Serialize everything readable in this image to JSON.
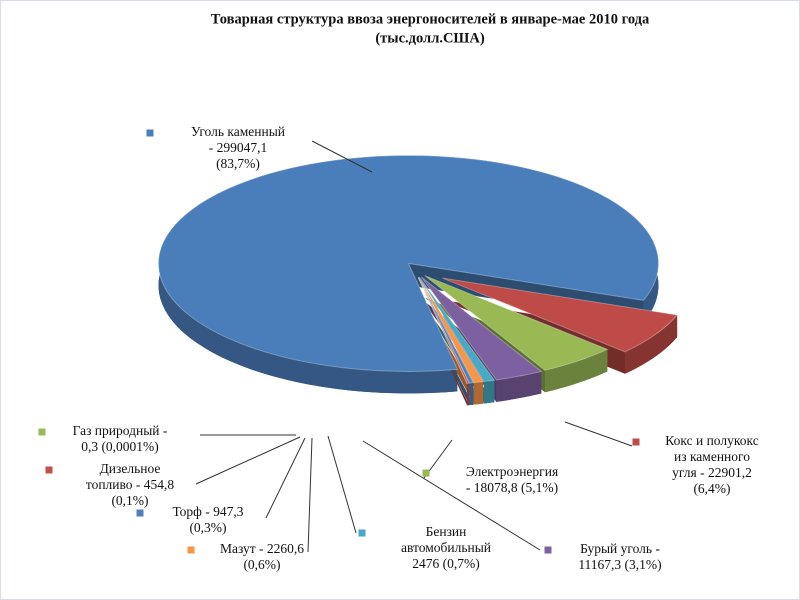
{
  "chart_data": {
    "type": "pie",
    "title": "Товарная структура ввоза энергоносителей в январе-мае 2010 года",
    "subtitle": "(тыс.долл.США)",
    "categories": [
      null,
      null,
      null,
      null,
      null,
      null,
      null,
      null,
      null
    ],
    "values": [
      299047.1,
      22901.2,
      18078.8,
      11167.3,
      2476,
      2260.6,
      947.3,
      454.8,
      0.3
    ],
    "value_labels": [
      [
        "Уголь каменный",
        "- 299047,1",
        "(83,7%)"
      ],
      [
        "Кокс и полукокс",
        "из каменного",
        "угля - 22901,2",
        "(6,4%)"
      ],
      [
        "Электроэнергия",
        "- 18078,8 (5,1%)"
      ],
      [
        "Бурый уголь -",
        "11167,3 (3,1%)"
      ],
      [
        "Бензин",
        "автомобильный",
        "2476 (0,7%)"
      ],
      [
        "Мазут - 2260,6",
        "(0,6%)"
      ],
      [
        "Торф - 947,3",
        "(0,3%)"
      ],
      [
        "Дизельное",
        "топливо - 454,8",
        "(0,1%)"
      ],
      [
        "Газ природный -",
        "0,3 (0,0001%)"
      ]
    ],
    "colors": [
      "#4a7ebb",
      "#be4b48",
      "#98b954",
      "#7d60a0",
      "#46aac5",
      "#f79646",
      "#4f81bd",
      "#c0504d",
      "#9bbb59"
    ]
  }
}
